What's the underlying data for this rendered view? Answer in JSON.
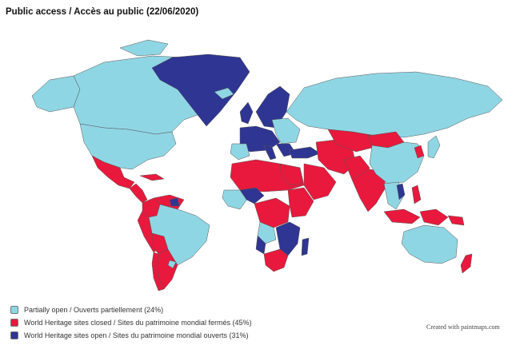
{
  "title": "Public access / Accès au public (22/06/2020)",
  "colors": {
    "partially_open": "#8fd6e4",
    "closed": "#e8193c",
    "open": "#2f3592",
    "border": "#555555",
    "ocean": "#ffffff"
  },
  "legend": [
    {
      "key": "partially_open",
      "label": "Partially open / Ouverts partiellement (24%)"
    },
    {
      "key": "closed",
      "label": "World Heritage sites closed / Sites du patrimoine mondial fermés (45%)"
    },
    {
      "key": "open",
      "label": "World Heritage sites open / Sites du patrimoine mondial ouverts (31%)"
    }
  ],
  "credit": "Created with paintmaps.com"
}
